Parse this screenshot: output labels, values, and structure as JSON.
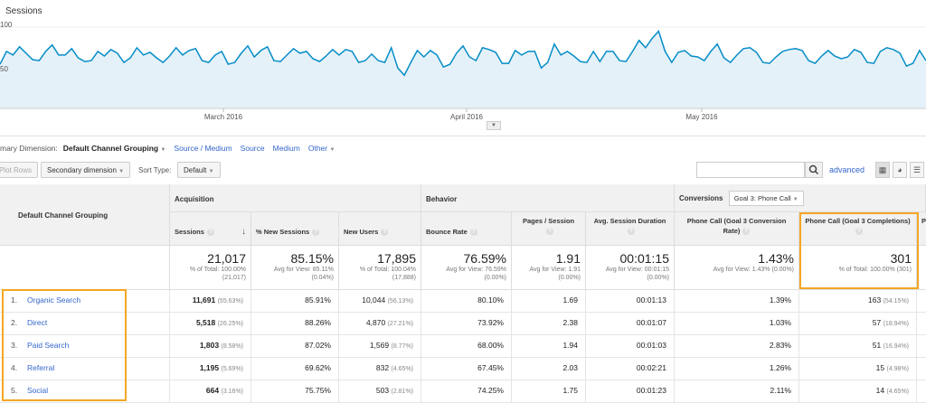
{
  "chart": {
    "legend": "Sessions",
    "y_ticks": [
      "100",
      "50"
    ],
    "x_ticks": [
      "March 2016",
      "April 2016",
      "May 2016"
    ],
    "toggle_icon": "chevron-down-icon"
  },
  "chart_data": {
    "type": "area",
    "title": "",
    "series": [
      {
        "name": "Sessions",
        "values": [
          48,
          62,
          58,
          67,
          60,
          53,
          52,
          62,
          69,
          58,
          58,
          65,
          55,
          51,
          52,
          62,
          57,
          64,
          60,
          50,
          55,
          66,
          58,
          61,
          55,
          50,
          57,
          66,
          58,
          63,
          65,
          52,
          50,
          58,
          62,
          48,
          50,
          60,
          68,
          56,
          63,
          67,
          52,
          51,
          58,
          65,
          60,
          62,
          54,
          51,
          57,
          64,
          58,
          64,
          62,
          50,
          52,
          59,
          52,
          50,
          66,
          44,
          36,
          50,
          63,
          56,
          63,
          58,
          45,
          48,
          60,
          68,
          56,
          52,
          66,
          64,
          61,
          49,
          49,
          63,
          58,
          62,
          62,
          44,
          50,
          70,
          58,
          62,
          57,
          51,
          50,
          62,
          51,
          62,
          62,
          52,
          51,
          62,
          74,
          66,
          76,
          84,
          62,
          50,
          61,
          63,
          57,
          56,
          52,
          62,
          70,
          55,
          50,
          58,
          65,
          66,
          61,
          50,
          49,
          56,
          62,
          64,
          65,
          63,
          52,
          49,
          57,
          63,
          57,
          54,
          56,
          64,
          61,
          50,
          49,
          62,
          66,
          64,
          60,
          46,
          49,
          63,
          52
        ]
      }
    ],
    "ylim": [
      0,
      110
    ],
    "grid": true
  },
  "dimensions": {
    "label": "mary Dimension:",
    "primary": "Default Channel Grouping",
    "links": [
      "Source / Medium",
      "Source",
      "Medium",
      "Other"
    ]
  },
  "toolbar": {
    "plot_rows": "Plot Rows",
    "secondary_dimension": "Secondary dimension",
    "sort_type_label": "Sort Type:",
    "sort_type_value": "Default",
    "search_placeholder": "",
    "advanced": "advanced"
  },
  "table": {
    "dimension_header": "Default Channel Grouping",
    "groups": {
      "acquisition": "Acquisition",
      "behavior": "Behavior",
      "conversions": "Conversions",
      "goal_select": "Goal 3: Phone Call"
    },
    "columns": [
      "Sessions",
      "% New Sessions",
      "New Users",
      "Bounce Rate",
      "Pages / Session",
      "Avg. Session Duration",
      "Phone Call (Goal 3 Conversion Rate)",
      "Phone Call (Goal 3 Completions)",
      "P"
    ],
    "totals": [
      {
        "big": "21,017",
        "sub1": "% of Total: 100.00%",
        "sub2": "(21,017)"
      },
      {
        "big": "85.15%",
        "sub1": "Avg for View: 85.11%",
        "sub2": "(0.04%)"
      },
      {
        "big": "17,895",
        "sub1": "% of Total: 100.04%",
        "sub2": "(17,888)"
      },
      {
        "big": "76.59%",
        "sub1": "Avg for View: 76.59%",
        "sub2": "(0.00%)"
      },
      {
        "big": "1.91",
        "sub1": "Avg for View: 1.91",
        "sub2": "(0.00%)"
      },
      {
        "big": "00:01:15",
        "sub1": "Avg for View: 00:01:15",
        "sub2": "(0.00%)"
      },
      {
        "big": "1.43%",
        "sub1": "Avg for View: 1.43% (0.00%)",
        "sub2": ""
      },
      {
        "big": "301",
        "sub1": "% of Total: 100.00% (301)",
        "sub2": ""
      }
    ],
    "rows": [
      {
        "num": "1.",
        "channel": "Organic Search",
        "sessions": "11,691",
        "sessions_pct": "(55.63%)",
        "new_sessions": "85.91%",
        "new_users": "10,044",
        "new_users_pct": "(56.13%)",
        "bounce": "80.10%",
        "pages": "1.69",
        "duration": "00:01:13",
        "conv_rate": "1.39%",
        "completions": "163",
        "completions_pct": "(54.15%)"
      },
      {
        "num": "2.",
        "channel": "Direct",
        "sessions": "5,518",
        "sessions_pct": "(26.25%)",
        "new_sessions": "88.26%",
        "new_users": "4,870",
        "new_users_pct": "(27.21%)",
        "bounce": "73.92%",
        "pages": "2.38",
        "duration": "00:01:07",
        "conv_rate": "1.03%",
        "completions": "57",
        "completions_pct": "(18.94%)"
      },
      {
        "num": "3.",
        "channel": "Paid Search",
        "sessions": "1,803",
        "sessions_pct": "(8.58%)",
        "new_sessions": "87.02%",
        "new_users": "1,569",
        "new_users_pct": "(8.77%)",
        "bounce": "68.00%",
        "pages": "1.94",
        "duration": "00:01:03",
        "conv_rate": "2.83%",
        "completions": "51",
        "completions_pct": "(16.94%)"
      },
      {
        "num": "4.",
        "channel": "Referral",
        "sessions": "1,195",
        "sessions_pct": "(5.69%)",
        "new_sessions": "69.62%",
        "new_users": "832",
        "new_users_pct": "(4.65%)",
        "bounce": "67.45%",
        "pages": "2.03",
        "duration": "00:02:21",
        "conv_rate": "1.26%",
        "completions": "15",
        "completions_pct": "(4.98%)"
      },
      {
        "num": "5.",
        "channel": "Social",
        "sessions": "664",
        "sessions_pct": "(3.16%)",
        "new_sessions": "75.75%",
        "new_users": "503",
        "new_users_pct": "(2.81%)",
        "bounce": "74.25%",
        "pages": "1.75",
        "duration": "00:01:23",
        "conv_rate": "2.11%",
        "completions": "14",
        "completions_pct": "(4.65%)"
      }
    ]
  },
  "colors": {
    "line": "#058dc7",
    "fill": "#e5f1f8",
    "link": "#3366cc",
    "highlight": "#f5a623"
  }
}
